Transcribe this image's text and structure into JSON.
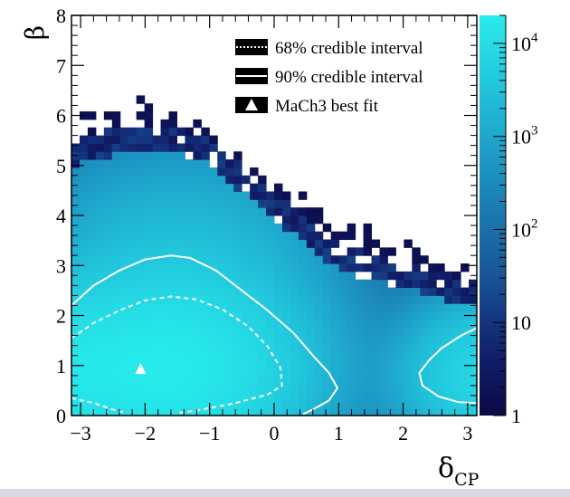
{
  "chart_data": {
    "type": "heatmap",
    "xlabel": "δ",
    "xlabel_sub": "CP",
    "ylabel": "β",
    "xlim": [
      -3.1416,
      3.1416
    ],
    "ylim": [
      0,
      8
    ],
    "x_ticks": [
      -3,
      -2,
      -1,
      0,
      1,
      2,
      3
    ],
    "x_tick_labels": [
      "−3",
      "−2",
      "−1",
      "0",
      "1",
      "2",
      "3"
    ],
    "y_ticks": [
      0,
      1,
      2,
      3,
      4,
      5,
      6,
      7,
      8
    ],
    "y_tick_labels": [
      "0",
      "1",
      "2",
      "3",
      "4",
      "5",
      "6",
      "7",
      "8"
    ],
    "z_scale": "log",
    "z_range": [
      1,
      20000
    ],
    "colorbar_ticks": [
      1,
      10,
      100,
      1000,
      10000
    ],
    "colorbar_labels": [
      {
        "base": "1",
        "exp": ""
      },
      {
        "base": "10",
        "exp": ""
      },
      {
        "base": "10",
        "exp": "2"
      },
      {
        "base": "10",
        "exp": "3"
      },
      {
        "base": "10",
        "exp": "4"
      }
    ],
    "colors": {
      "low": "#0b0a45",
      "high": "#27ecec",
      "contour": "#ffffff"
    },
    "grid": false,
    "legend_position": "top-right",
    "legend": [
      {
        "label": "68% credible interval",
        "style": "dotted"
      },
      {
        "label": "90% credible interval",
        "style": "solid"
      },
      {
        "label": "MaCh3 best fit",
        "style": "marker"
      }
    ],
    "best_fit": {
      "x": -2.07,
      "y": 0.92
    },
    "contour_68": [
      [
        -3.14,
        1.55
      ],
      [
        -2.8,
        1.85
      ],
      [
        -2.4,
        2.1
      ],
      [
        -2.0,
        2.3
      ],
      [
        -1.6,
        2.38
      ],
      [
        -1.2,
        2.32
      ],
      [
        -0.8,
        2.12
      ],
      [
        -0.4,
        1.78
      ],
      [
        -0.1,
        1.38
      ],
      [
        0.1,
        0.95
      ],
      [
        0.12,
        0.6
      ],
      [
        -0.1,
        0.42
      ],
      [
        -0.6,
        0.25
      ],
      [
        -1.2,
        0.1
      ],
      [
        -1.5,
        0.05
      ]
    ],
    "contour_68_tail": [
      [
        -3.14,
        0.35
      ],
      [
        -2.8,
        0.25
      ],
      [
        -2.5,
        0.12
      ],
      [
        -2.3,
        0.05
      ]
    ],
    "contour_90": [
      [
        -3.14,
        2.2
      ],
      [
        -2.8,
        2.6
      ],
      [
        -2.4,
        2.9
      ],
      [
        -2.0,
        3.12
      ],
      [
        -1.6,
        3.2
      ],
      [
        -1.3,
        3.15
      ],
      [
        -0.9,
        2.9
      ],
      [
        -0.5,
        2.5
      ],
      [
        -0.1,
        2.1
      ],
      [
        0.3,
        1.65
      ],
      [
        0.6,
        1.2
      ],
      [
        0.85,
        0.85
      ],
      [
        0.98,
        0.55
      ],
      [
        0.85,
        0.3
      ],
      [
        0.6,
        0.12
      ],
      [
        0.45,
        0.03
      ]
    ],
    "contour_90_right": [
      [
        3.14,
        1.75
      ],
      [
        2.9,
        1.6
      ],
      [
        2.6,
        1.35
      ],
      [
        2.4,
        1.1
      ],
      [
        2.25,
        0.85
      ],
      [
        2.3,
        0.6
      ],
      [
        2.55,
        0.38
      ],
      [
        2.85,
        0.27
      ],
      [
        3.14,
        0.25
      ]
    ]
  }
}
